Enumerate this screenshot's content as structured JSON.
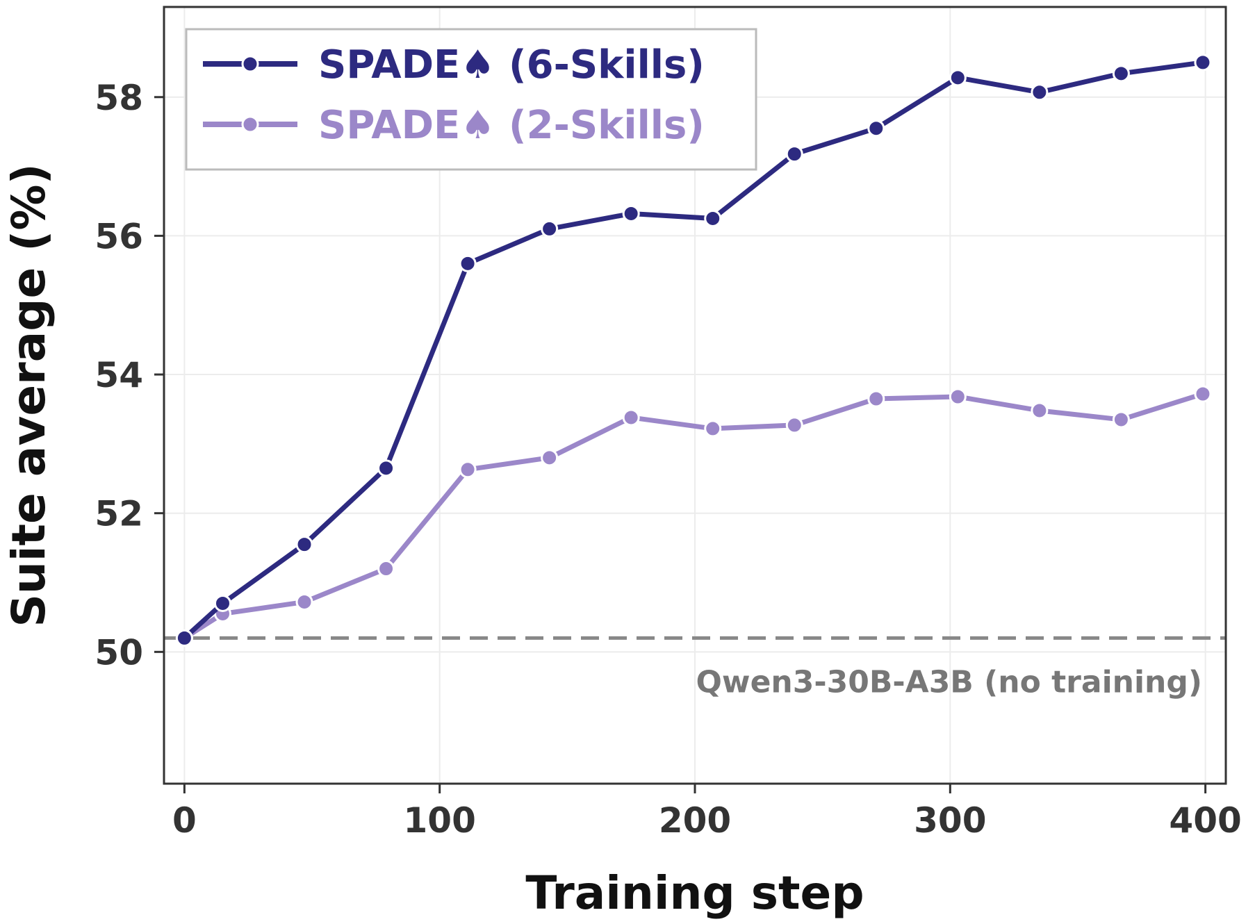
{
  "chart_data": {
    "type": "line",
    "title": "",
    "xlabel": "Training step",
    "ylabel": "Suite average (%)",
    "xlim": [
      -8,
      408
    ],
    "ylim": [
      48.1,
      59.3
    ],
    "xticks": [
      0,
      100,
      200,
      300,
      400
    ],
    "yticks": [
      50,
      52,
      54,
      56,
      58
    ],
    "grid": true,
    "legend_position": "top-left",
    "series": [
      {
        "name": "SPADE♠ (6-Skills)",
        "color": "#2d2a80",
        "x": [
          0,
          15,
          47,
          79,
          111,
          143,
          175,
          207,
          239,
          271,
          303,
          335,
          367,
          399
        ],
        "y": [
          50.2,
          50.7,
          51.55,
          52.65,
          55.6,
          56.1,
          56.32,
          56.25,
          57.18,
          57.55,
          58.28,
          58.07,
          58.34,
          58.5
        ]
      },
      {
        "name": "SPADE♠ (2-Skills)",
        "color": "#9b87c9",
        "x": [
          0,
          15,
          47,
          79,
          111,
          143,
          175,
          207,
          239,
          271,
          303,
          335,
          367,
          399
        ],
        "y": [
          50.2,
          50.55,
          50.72,
          51.2,
          52.63,
          52.8,
          53.38,
          53.22,
          53.27,
          53.65,
          53.68,
          53.48,
          53.35,
          53.72
        ]
      }
    ],
    "reference_line": {
      "y": 50.2,
      "label": "Qwen3-30B-A3B (no training)",
      "color": "#888888"
    }
  }
}
